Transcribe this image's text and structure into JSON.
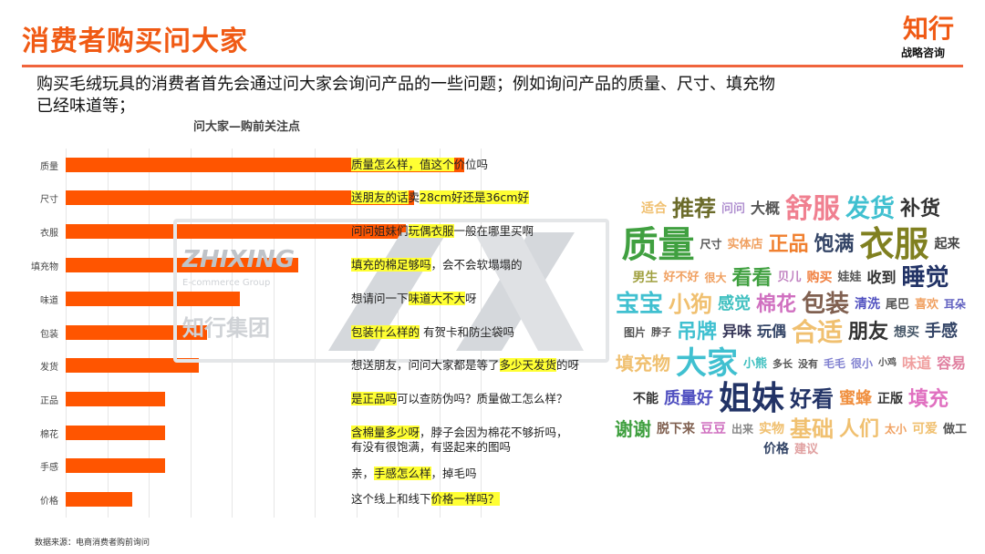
{
  "header": {
    "title": "消费者购买问大家",
    "logo_main": "知行",
    "logo_sub": "战略咨询"
  },
  "summary": {
    "line1": "购买毛绒玩具的消费者首先会通过问大家会询问产品的一些问题；例如询问产品的质量、尺寸、填充物",
    "line2": "已经味道等；"
  },
  "chart_data": {
    "type": "bar",
    "orientation": "horizontal",
    "title": "问大家—购前关注点",
    "categories": [
      "质量",
      "尺寸",
      "衣服",
      "填充物",
      "味道",
      "包装",
      "发货",
      "正品",
      "棉花",
      "手感",
      "价格"
    ],
    "values": [
      9.6,
      8.4,
      8.2,
      5.6,
      4.2,
      3.4,
      3.2,
      2.4,
      2.4,
      2.4,
      1.6
    ],
    "xlim": [
      0,
      10
    ],
    "grid": true,
    "bar_color": "#ff5500"
  },
  "annotations": [
    [
      {
        "t": "质量怎么样，值这个",
        "h": true
      },
      {
        "t": "价位吗",
        "h": false
      }
    ],
    [
      {
        "t": "送朋友的话",
        "h": true
      },
      {
        "t": "卖",
        "h": false
      },
      {
        "t": "28cm好还是36cm好",
        "h": true
      }
    ],
    [
      {
        "t": "问问姐妹们",
        "h": false
      },
      {
        "t": "玩偶衣服",
        "h": true
      },
      {
        "t": "一般在哪里买啊",
        "h": false
      }
    ],
    [
      {
        "t": "填充的棉足够吗",
        "h": true
      },
      {
        "t": "，会不会软塌塌的",
        "h": false
      }
    ],
    [
      {
        "t": "想请问一下",
        "h": false
      },
      {
        "t": "味道大不大",
        "h": true
      },
      {
        "t": "呀",
        "h": false
      }
    ],
    [
      {
        "t": "包装什么样的",
        "h": true
      },
      {
        "t": " 有贺卡和防尘袋吗",
        "h": false
      }
    ],
    [
      {
        "t": "想送朋友，问问大家都是等了",
        "h": false
      },
      {
        "t": "多少天发货",
        "h": true
      },
      {
        "t": "的呀",
        "h": false
      }
    ],
    [
      {
        "t": "是正品吗",
        "h": true
      },
      {
        "t": "可以查防伪吗？质量做工怎么样？",
        "h": false
      }
    ],
    [
      {
        "t": "含棉量多少呀",
        "h": true
      },
      {
        "t": "，脖子会因为棉花不够折吗，",
        "h": false
      }
    ],
    [
      {
        "t": "有没有很饱满，有竖起来的图吗",
        "h": false
      }
    ],
    [
      {
        "t": "亲，",
        "h": false
      },
      {
        "t": "手感怎么样",
        "h": true
      },
      {
        "t": "，掉毛吗",
        "h": false
      }
    ],
    [
      {
        "t": "这个线上和线下",
        "h": false
      },
      {
        "t": "价格一样吗？",
        "h": true
      }
    ]
  ],
  "source": "数据来源：电商消费者购前询问",
  "watermark": {
    "brand": "ZHIXING",
    "group": "E-commerce Group",
    "cn": "知行集团"
  },
  "highlight_color": "#ffff33",
  "accent_color": "#f05a14",
  "wordcloud": {
    "words": [
      {
        "text": "适合",
        "color": "#f0c070"
      },
      {
        "text": "推荐",
        "color": "#6b6b2a"
      },
      {
        "text": "问问",
        "color": "#b090d0"
      },
      {
        "text": "大概",
        "color": "#555555"
      },
      {
        "text": "舒服",
        "color": "#f08090"
      },
      {
        "text": "发货",
        "color": "#40c0d0"
      },
      {
        "text": "补货",
        "color": "#333333"
      },
      {
        "text": "质量",
        "color": "#40a040"
      },
      {
        "text": "尺寸",
        "color": "#555555"
      },
      {
        "text": "实体店",
        "color": "#f0a060"
      },
      {
        "text": "正品",
        "color": "#f08030"
      },
      {
        "text": "饱满",
        "color": "#334466"
      },
      {
        "text": "衣服",
        "color": "#808020"
      },
      {
        "text": "起来",
        "color": "#444444"
      },
      {
        "text": "男生",
        "color": "#a0a040"
      },
      {
        "text": "好不好",
        "color": "#f0a060"
      },
      {
        "text": "很大",
        "color": "#f0a060"
      },
      {
        "text": "看看",
        "color": "#40a040"
      },
      {
        "text": "贝儿",
        "color": "#c080c0"
      },
      {
        "text": "购买",
        "color": "#f08040"
      },
      {
        "text": "娃娃",
        "color": "#555555"
      },
      {
        "text": "收到",
        "color": "#333333"
      },
      {
        "text": "睡觉",
        "color": "#223366"
      },
      {
        "text": "宝宝",
        "color": "#40c0d0"
      },
      {
        "text": "小狗",
        "color": "#f0c070"
      },
      {
        "text": "感觉",
        "color": "#40c0c0"
      },
      {
        "text": "棉花",
        "color": "#d070c0"
      },
      {
        "text": "包装",
        "color": "#806050"
      },
      {
        "text": "清洗",
        "color": "#5050c0"
      },
      {
        "text": "尾巴",
        "color": "#555555"
      },
      {
        "text": "喜欢",
        "color": "#f0a060"
      },
      {
        "text": "耳朵",
        "color": "#6060c0"
      },
      {
        "text": "图片",
        "color": "#555555"
      },
      {
        "text": "脖子",
        "color": "#555555"
      },
      {
        "text": "吊牌",
        "color": "#40c0d0"
      },
      {
        "text": "异味",
        "color": "#333355"
      },
      {
        "text": "玩偶",
        "color": "#334466"
      },
      {
        "text": "合适",
        "color": "#f0c070"
      },
      {
        "text": "朋友",
        "color": "#333333"
      },
      {
        "text": "想买",
        "color": "#445566"
      },
      {
        "text": "手感",
        "color": "#334466"
      },
      {
        "text": "填充物",
        "color": "#f0c070"
      },
      {
        "text": "大家",
        "color": "#40c0d0"
      },
      {
        "text": "小熊",
        "color": "#40c0c0"
      },
      {
        "text": "多长",
        "color": "#555555"
      },
      {
        "text": "没有",
        "color": "#555555"
      },
      {
        "text": "毛毛",
        "color": "#8080d0"
      },
      {
        "text": "很小",
        "color": "#8080d0"
      },
      {
        "text": "小鸡",
        "color": "#555555"
      },
      {
        "text": "味道",
        "color": "#f0a0a0"
      },
      {
        "text": "容易",
        "color": "#e080a0"
      },
      {
        "text": "不能",
        "color": "#333333"
      },
      {
        "text": "质量好",
        "color": "#5050c0"
      },
      {
        "text": "姐妹",
        "color": "#223366"
      },
      {
        "text": "好看",
        "color": "#223366"
      },
      {
        "text": "蜜蜂",
        "color": "#f09040"
      },
      {
        "text": "正版",
        "color": "#333333"
      },
      {
        "text": "填充",
        "color": "#e070c0"
      },
      {
        "text": "谢谢",
        "color": "#40a040"
      },
      {
        "text": "脱下来",
        "color": "#806050"
      },
      {
        "text": "豆豆",
        "color": "#d070c0"
      },
      {
        "text": "出来",
        "color": "#888888"
      },
      {
        "text": "实物",
        "color": "#f0c070"
      },
      {
        "text": "基础",
        "color": "#f0c070"
      },
      {
        "text": "人们",
        "color": "#f0c070"
      },
      {
        "text": "太小",
        "color": "#f0a060"
      },
      {
        "text": "可爱",
        "color": "#f0c070"
      },
      {
        "text": "做工",
        "color": "#555555"
      },
      {
        "text": "价格",
        "color": "#334466"
      },
      {
        "text": "建议",
        "color": "#e0a0a0"
      }
    ]
  }
}
